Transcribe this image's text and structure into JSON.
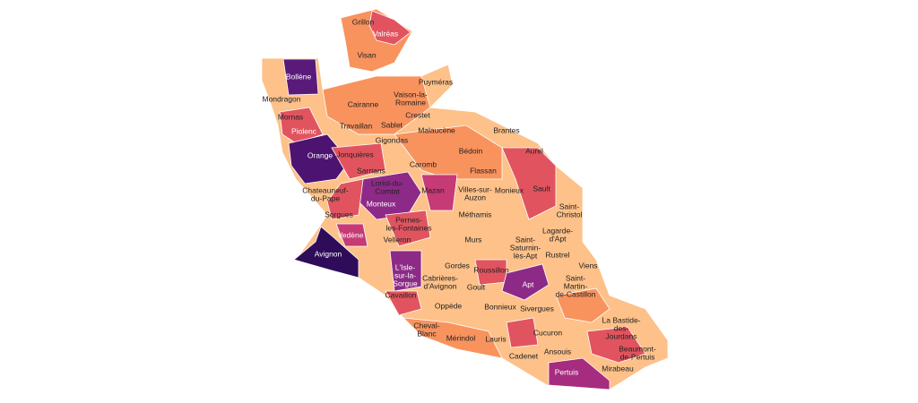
{
  "communes": [
    [
      "Grillon"
    ],
    [
      "Valréas"
    ],
    [
      "Visan"
    ],
    [
      "Bollène"
    ],
    [
      "Puyméras"
    ],
    [
      "Mondragon"
    ],
    [
      "Vaison-la-",
      "Romaine"
    ],
    [
      "Cairanne"
    ],
    [
      "Crestet"
    ],
    [
      "Mornas"
    ],
    [
      "Sablet"
    ],
    [
      "Travaillan"
    ],
    [
      "Malaucène"
    ],
    [
      "Brantes"
    ],
    [
      "Piolenc"
    ],
    [
      "Gigondas"
    ],
    [
      "Orange"
    ],
    [
      "Jonquières"
    ],
    [
      "Bédoin"
    ],
    [
      "Aurel"
    ],
    [
      "Caromb"
    ],
    [
      "Sarrians"
    ],
    [
      "Flassan"
    ],
    [
      "Sault"
    ],
    [
      "Loriol-du-",
      "Comtat"
    ],
    [
      "Chateauneuf-",
      "du-Pape"
    ],
    [
      "Mazan"
    ],
    [
      "Villes-sur-",
      "Auzon"
    ],
    [
      "Monieux"
    ],
    [
      "Monteux"
    ],
    [
      "Saint-",
      "Christol"
    ],
    [
      "Sorgues"
    ],
    [
      "Méthamis"
    ],
    [
      "Pernes-",
      "les-Fontaines"
    ],
    [
      "Lagarde-",
      "d'Apt"
    ],
    [
      "Vedène"
    ],
    [
      "Velleron"
    ],
    [
      "Murs"
    ],
    [
      "Saint-",
      "Saturnin-",
      "lès-Apt"
    ],
    [
      "Avignon"
    ],
    [
      "Rustrel"
    ],
    [
      "Viens"
    ],
    [
      "Gordes"
    ],
    [
      "L'Isle-",
      "sur-la-",
      "Sorgue"
    ],
    [
      "Roussillon"
    ],
    [
      "Cabrières-",
      "d'Avignon"
    ],
    [
      "Apt"
    ],
    [
      "Saint-",
      "Martin-",
      "de-Castillon"
    ],
    [
      "Goult"
    ],
    [
      "Cavaillon"
    ],
    [
      "Oppède"
    ],
    [
      "Bonnieux"
    ],
    [
      "Sivergues"
    ],
    [
      "La Bastide-",
      "des-",
      "Jourdans"
    ],
    [
      "Cheval-",
      "Blanc"
    ],
    [
      "Mérindol"
    ],
    [
      "Lauris"
    ],
    [
      "Cucuron"
    ],
    [
      "Beaumont-",
      "de-Pertuis"
    ],
    [
      "Cadenet"
    ],
    [
      "Ansouis"
    ],
    [
      "Mirabeau"
    ],
    [
      "Pertuis"
    ]
  ]
}
